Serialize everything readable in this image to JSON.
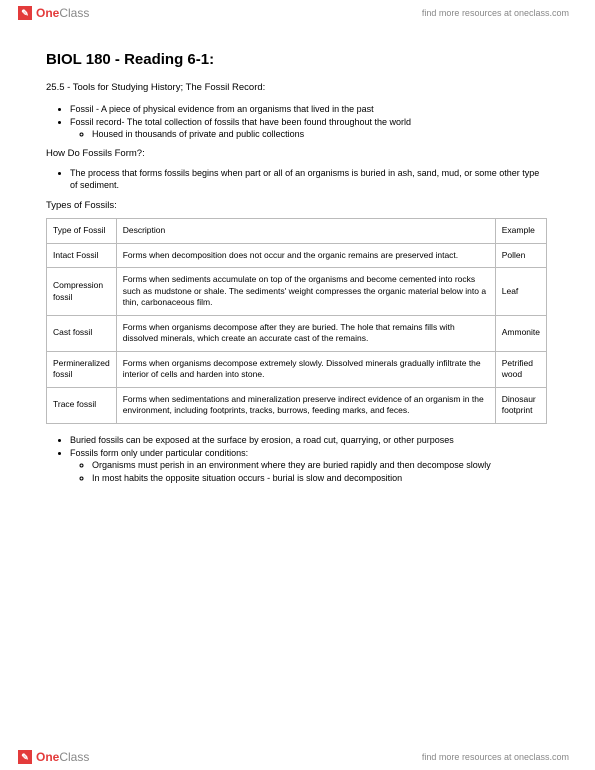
{
  "brand": {
    "iconGlyph": "✎",
    "one": "One",
    "class": "Class",
    "find": "find more resources at oneclass.com"
  },
  "title": "BIOL 180 - Reading 6-1:",
  "subtitle": "25.5 - Tools for Studying History; The Fossil Record:",
  "intro": {
    "i1": "Fossil - A piece of physical evidence from an organisms that lived in the past",
    "i2": "Fossil record- The total collection of fossils that have been found throughout the world",
    "i2a": "Housed in thousands of private and public collections"
  },
  "howLabel": "How Do Fossils Form?:",
  "how": {
    "h1": "The process that forms fossils begins when part or all of an organisms is buried in ash, sand, mud, or some other type of sediment."
  },
  "typesLabel": "Types of Fossils:",
  "table": {
    "head": {
      "c1": "Type of Fossil",
      "c2": "Description",
      "c3": "Example"
    },
    "rows": [
      {
        "c1": "Intact Fossil",
        "c2": "Forms when decomposition does not occur and the organic remains are preserved intact.",
        "c3": "Pollen"
      },
      {
        "c1": "Compression fossil",
        "c2": "Forms when sediments accumulate on top of the organisms and become cemented into rocks such as mudstone or shale. The sediments' weight compresses the organic material below into a thin, carbonaceous film.",
        "c3": "Leaf"
      },
      {
        "c1": "Cast fossil",
        "c2": "Forms when organisms decompose after they are buried. The hole that remains fills with dissolved minerals, which create an accurate cast of the remains.",
        "c3": "Ammonite"
      },
      {
        "c1": "Permineralized fossil",
        "c2": "Forms when organisms decompose extremely slowly. Dissolved minerals gradually infiltrate the interior of cells and harden into stone.",
        "c3": "Petrified wood"
      },
      {
        "c1": "Trace fossil",
        "c2": "Forms when sedimentations and mineralization preserve indirect evidence of an organism in the environment, including footprints, tracks, burrows, feeding marks, and feces.",
        "c3": "Dinosaur footprint"
      }
    ]
  },
  "post": {
    "p1": "Buried fossils can be exposed at the surface by erosion, a road cut, quarrying, or other purposes",
    "p2": "Fossils form only under particular conditions:",
    "p2a": "Organisms must perish in an environment where they are buried rapidly and then decompose slowly",
    "p2b": "In most habits the opposite situation occurs - burial is slow and decomposition"
  }
}
